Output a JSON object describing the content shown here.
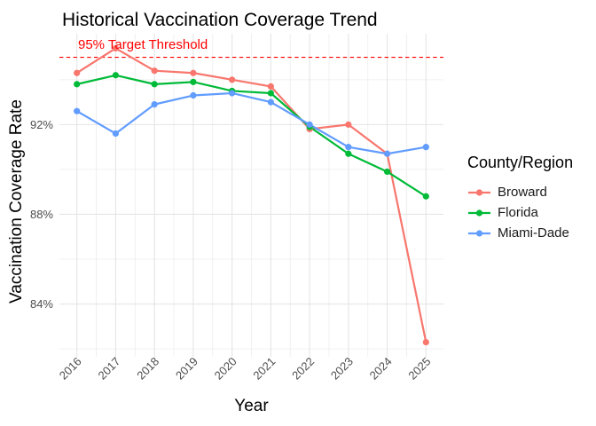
{
  "chart_data": {
    "type": "line",
    "title": "Historical Vaccination Coverage Trend",
    "xlabel": "Year",
    "ylabel": "Vaccination Coverage Rate",
    "legend_title": "County/Region",
    "legend_position": "right",
    "grid": true,
    "x": [
      2016,
      2017,
      2018,
      2019,
      2020,
      2021,
      2022,
      2023,
      2024,
      2025
    ],
    "x_tick_labels": [
      "2016",
      "2017",
      "2018",
      "2019",
      "2020",
      "2021",
      "2022",
      "2023",
      "2024",
      "2025"
    ],
    "y_ticks": [
      {
        "value": 84,
        "label": "84%"
      },
      {
        "value": 88,
        "label": "88%"
      },
      {
        "value": 92,
        "label": "92%"
      }
    ],
    "y_minor_ticks": [
      82,
      86,
      90,
      94
    ],
    "ylim": [
      81.65,
      96.05
    ],
    "xlim": [
      2015.55,
      2025.45
    ],
    "series": [
      {
        "name": "Broward",
        "color": "#F8766D",
        "values": [
          94.3,
          95.4,
          94.4,
          94.3,
          94.0,
          93.7,
          91.8,
          92.0,
          90.7,
          82.3
        ]
      },
      {
        "name": "Florida",
        "color": "#00BA38",
        "values": [
          93.8,
          94.2,
          93.8,
          93.9,
          93.5,
          93.4,
          91.9,
          90.7,
          89.9,
          88.8
        ]
      },
      {
        "name": "Miami-Dade",
        "color": "#619CFF",
        "values": [
          92.6,
          91.6,
          92.9,
          93.3,
          93.4,
          93.0,
          92.0,
          91.0,
          90.7,
          91.0
        ]
      }
    ],
    "threshold": {
      "value": 95,
      "label": "95% Target Threshold",
      "color": "#FF0000",
      "style": "dashed"
    },
    "colors": {
      "axis_text": "#4D4D4D",
      "grid_major": "#E5E5E5",
      "grid_minor": "#F0F0F0",
      "title_text": "#000000"
    }
  }
}
